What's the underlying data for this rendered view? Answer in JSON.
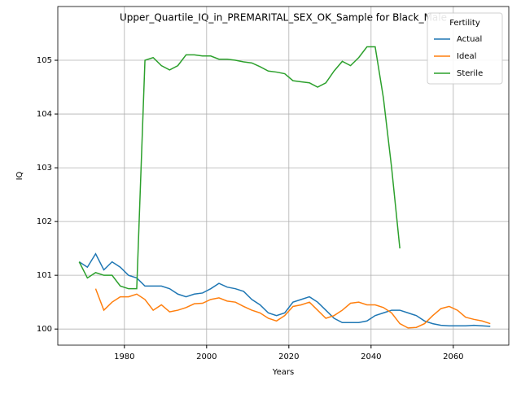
{
  "chart_data": {
    "type": "line",
    "title": "Upper_Quartile_IQ_in_PREMARITAL_SEX_OK_Sample for Black_Male",
    "x_label": "Years",
    "y_label": "IQ",
    "legend_title": "Fertility",
    "legend_position": "upper right",
    "grid": true,
    "x": [
      1969,
      1971,
      1973,
      1975,
      1977,
      1979,
      1981,
      1983,
      1985,
      1987,
      1989,
      1991,
      1993,
      1995,
      1997,
      1999,
      2001,
      2003,
      2005,
      2007,
      2009,
      2011,
      2013,
      2015,
      2017,
      2019,
      2021,
      2023,
      2025,
      2027,
      2029,
      2031,
      2033,
      2035,
      2037,
      2039,
      2041,
      2043,
      2045,
      2047,
      2049,
      2051,
      2053,
      2055,
      2057,
      2059,
      2061,
      2063,
      2065,
      2067,
      2069
    ],
    "series": [
      {
        "name": "Actual",
        "color": "#1f77b4",
        "values": [
          101.25,
          101.15,
          101.4,
          101.1,
          101.25,
          101.15,
          101.0,
          100.95,
          100.8,
          100.8,
          100.8,
          100.75,
          100.65,
          100.6,
          100.65,
          100.67,
          100.75,
          100.85,
          100.78,
          100.75,
          100.7,
          100.55,
          100.45,
          100.3,
          100.25,
          100.3,
          100.5,
          100.55,
          100.6,
          100.5,
          100.35,
          100.2,
          100.12,
          100.12,
          100.12,
          100.15,
          100.25,
          100.3,
          100.35,
          100.35,
          100.3,
          100.25,
          100.15,
          100.1,
          100.07,
          100.06,
          100.06,
          100.06,
          100.07,
          100.06,
          100.05
        ]
      },
      {
        "name": "Ideal",
        "color": "#ff7f0e",
        "values": [
          null,
          null,
          100.75,
          100.35,
          100.5,
          100.6,
          100.6,
          100.65,
          100.55,
          100.35,
          100.45,
          100.32,
          100.35,
          100.4,
          100.47,
          100.48,
          100.55,
          100.58,
          100.52,
          100.5,
          100.42,
          100.35,
          100.3,
          100.2,
          100.15,
          100.25,
          100.42,
          100.45,
          100.5,
          100.35,
          100.2,
          100.25,
          100.35,
          100.48,
          100.5,
          100.45,
          100.45,
          100.4,
          100.3,
          100.1,
          100.02,
          100.03,
          100.1,
          100.25,
          100.38,
          100.42,
          100.35,
          100.22,
          100.18,
          100.15,
          100.1
        ]
      },
      {
        "name": "Sterile",
        "color": "#2ca02c",
        "values": [
          101.25,
          100.95,
          101.05,
          101.0,
          101.0,
          100.8,
          100.75,
          100.75,
          105.0,
          105.05,
          104.9,
          104.82,
          104.9,
          105.1,
          105.1,
          105.08,
          105.08,
          105.02,
          105.02,
          105.0,
          104.97,
          104.95,
          104.88,
          104.8,
          104.78,
          104.75,
          104.62,
          104.6,
          104.58,
          104.5,
          104.58,
          104.8,
          104.98,
          104.9,
          105.05,
          105.25,
          105.25,
          104.3,
          103.0,
          101.5,
          null,
          null,
          null,
          null,
          null,
          null,
          null,
          null,
          null,
          null,
          null
        ]
      }
    ],
    "xlim": [
      1963.8,
      2073.5
    ],
    "xticks": [
      1980,
      2000,
      2020,
      2040,
      2060
    ],
    "ylim": [
      99.7,
      106.0
    ],
    "yticks": [
      100,
      101,
      102,
      103,
      104,
      105
    ]
  }
}
